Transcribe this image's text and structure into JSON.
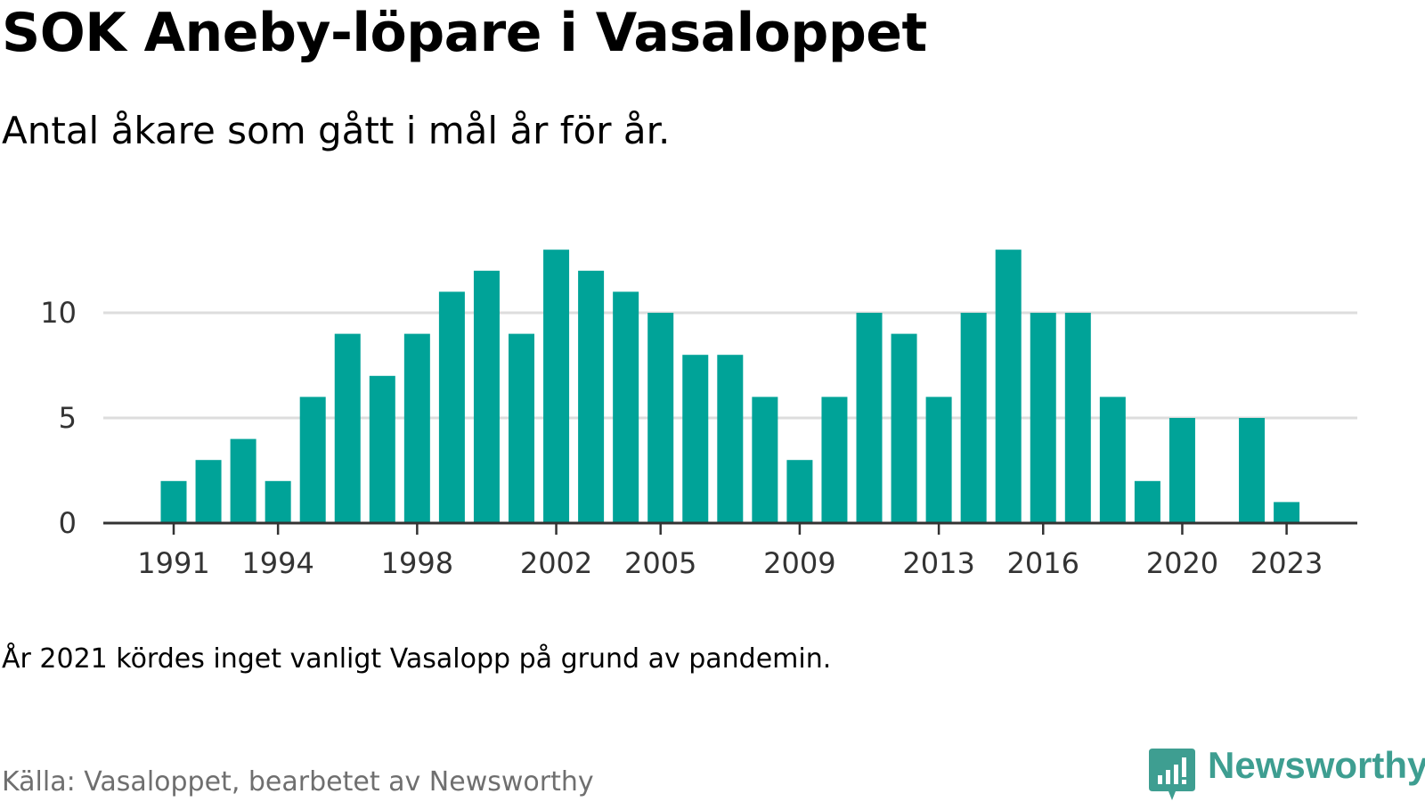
{
  "title": "SOK Aneby-löpare i Vasaloppet",
  "subtitle": "Antal åkare som gått i mål år för år.",
  "note": "År 2021 kördes inget vanligt Vasalopp på grund av pandemin.",
  "source": "Källa: Vasaloppet, bearbetet av Newsworthy",
  "logo": {
    "text": "Newsworthy",
    "icon": "newsworthy-logo-icon",
    "color": "#3e9e91"
  },
  "chart_data": {
    "type": "bar",
    "bar_color": "#00a398",
    "grid": true,
    "ylim": [
      0,
      14
    ],
    "y_ticks": [
      0,
      5,
      10
    ],
    "x_tick_labels": [
      "1991",
      "1994",
      "1998",
      "2002",
      "2005",
      "2009",
      "2013",
      "2016",
      "2020",
      "2023"
    ],
    "categories": [
      1991,
      1992,
      1993,
      1994,
      1995,
      1996,
      1997,
      1998,
      1999,
      2000,
      2001,
      2002,
      2003,
      2004,
      2005,
      2006,
      2007,
      2008,
      2009,
      2010,
      2011,
      2012,
      2013,
      2014,
      2015,
      2016,
      2017,
      2018,
      2019,
      2020,
      2021,
      2022,
      2023
    ],
    "values": [
      2,
      3,
      4,
      2,
      6,
      9,
      7,
      9,
      11,
      12,
      9,
      13,
      12,
      11,
      10,
      8,
      8,
      6,
      3,
      6,
      10,
      9,
      6,
      10,
      13,
      10,
      10,
      6,
      2,
      5,
      null,
      5,
      1
    ]
  }
}
